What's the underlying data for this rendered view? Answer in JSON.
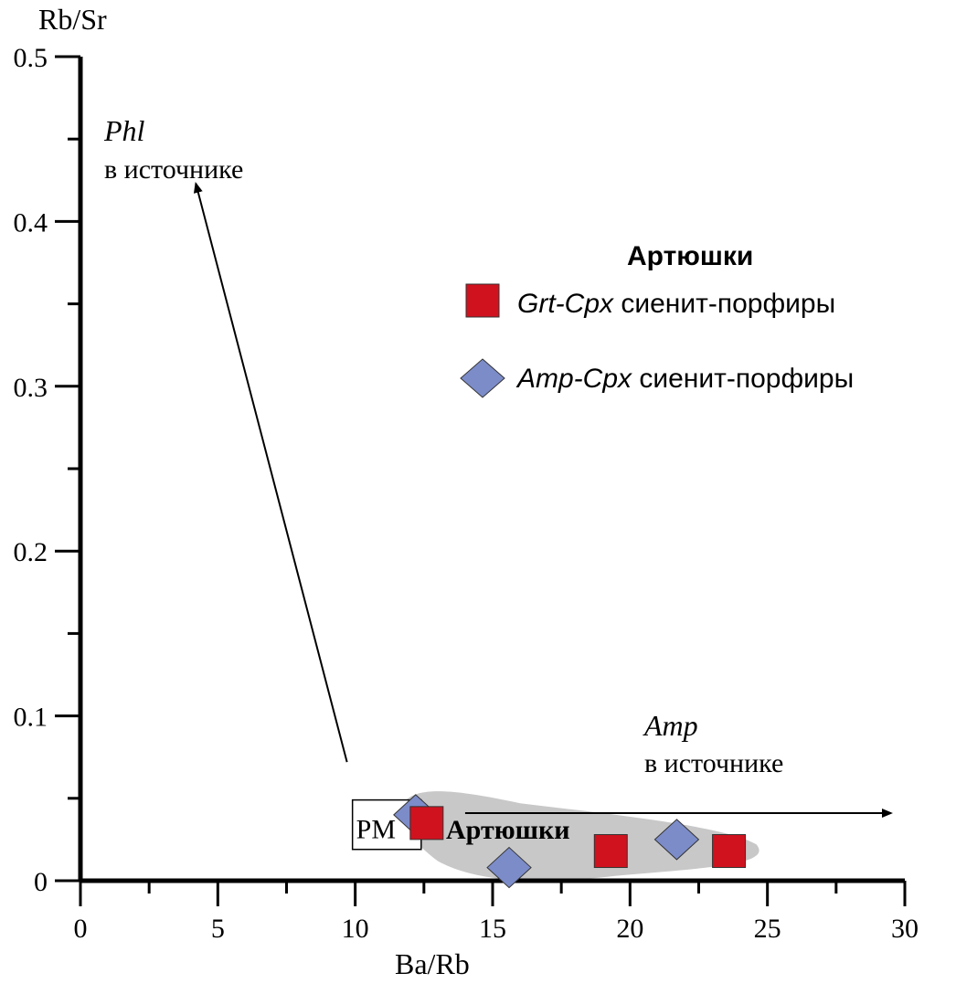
{
  "chart_data": {
    "type": "scatter",
    "xlabel": "Ba/Rb",
    "ylabel": "Rb/Sr",
    "xlim": [
      0,
      30
    ],
    "ylim": [
      0,
      0.5
    ],
    "x_ticks": [
      "0",
      "5",
      "10",
      "15",
      "20",
      "25",
      "30"
    ],
    "y_ticks": [
      "0",
      "0.1",
      "0.2",
      "0.3",
      "0.4",
      "0.5"
    ],
    "grid": false,
    "legend": {
      "title": "Артюшки",
      "placement": "top-right",
      "entries": [
        {
          "italic": "Grt-Cpx",
          "text": " сиенит-порфиры"
        },
        {
          "italic": "Amp-Cpx",
          "text": " сиенит-порфиры"
        }
      ]
    },
    "series": [
      {
        "marker": "square",
        "color": "#d0121e",
        "points": [
          {
            "x": 12.6,
            "y": 0.035
          },
          {
            "x": 19.3,
            "y": 0.018
          },
          {
            "x": 23.6,
            "y": 0.018
          }
        ]
      },
      {
        "marker": "diamond",
        "color": "#7c8cc9",
        "points": [
          {
            "x": 12.2,
            "y": 0.04
          },
          {
            "x": 15.6,
            "y": 0.008
          },
          {
            "x": 21.7,
            "y": 0.025
          }
        ]
      }
    ],
    "pm_box": {
      "label": "PM",
      "x": [
        9.9,
        12.4
      ],
      "y": [
        0.019,
        0.049
      ]
    },
    "field": {
      "label": "Артюшки",
      "color": "#c8c8c8"
    },
    "annotations": {
      "phl": {
        "italic": "Phl",
        "text": "в источнике",
        "from": [
          9.7,
          0.072
        ],
        "to": [
          4.2,
          0.423
        ]
      },
      "amp": {
        "italic": "Amp",
        "text": "в источнике",
        "from": [
          14.0,
          0.041
        ],
        "to": [
          29.5,
          0.041
        ]
      }
    }
  }
}
